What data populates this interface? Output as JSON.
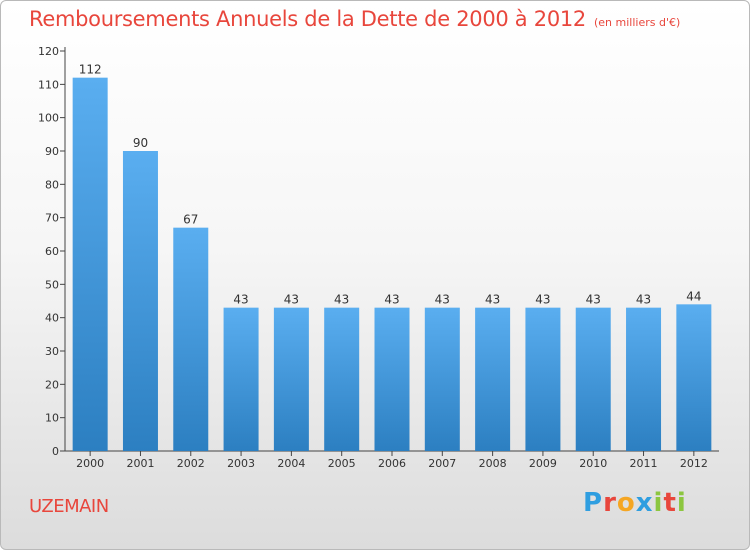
{
  "header": {
    "title": "Remboursements Annuels de la Dette de 2000 à 2012",
    "subtitle": "(en milliers d'€)"
  },
  "footer": {
    "commune": "UZEMAIN",
    "logo": {
      "letters": [
        "P",
        "r",
        "o",
        "x",
        "i",
        "t",
        "i"
      ],
      "colors": [
        "#2f9ee0",
        "#e8463c",
        "#f5a623",
        "#2f9ee0",
        "#8cc63f",
        "#e8463c",
        "#8cc63f"
      ]
    }
  },
  "chart_data": {
    "type": "bar",
    "title": "Remboursements Annuels de la Dette de 2000 à 2012",
    "subtitle": "(en milliers d'€)",
    "categories": [
      "2000",
      "2001",
      "2002",
      "2003",
      "2004",
      "2005",
      "2006",
      "2007",
      "2008",
      "2009",
      "2010",
      "2011",
      "2012"
    ],
    "values": [
      112,
      90,
      67,
      43,
      43,
      43,
      43,
      43,
      43,
      43,
      43,
      43,
      44
    ],
    "data_labels": [
      "112",
      "90",
      "67",
      "43",
      "43",
      "43",
      "43",
      "43",
      "43",
      "43",
      "43",
      "43",
      "44"
    ],
    "ylim": [
      0,
      120
    ],
    "yticks": [
      0,
      10,
      20,
      30,
      40,
      50,
      60,
      70,
      80,
      90,
      100,
      110,
      120
    ],
    "ytick_labels": [
      "0",
      "10",
      "20",
      "30",
      "40",
      "50",
      "60",
      "70",
      "80",
      "90",
      "100",
      "110",
      "120"
    ],
    "grid": false,
    "bar_color_top": "#5aaef0",
    "bar_color_bottom": "#2c7fc1"
  }
}
